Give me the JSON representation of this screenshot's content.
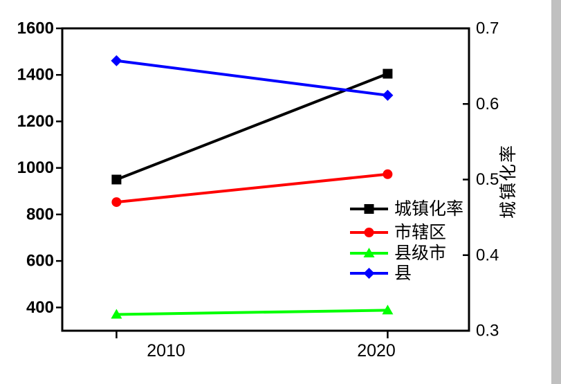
{
  "chart_data": {
    "type": "line",
    "title": "",
    "x": [
      2010,
      2020
    ],
    "x_tick_labels": [
      "2010",
      "2020"
    ],
    "series": [
      {
        "name": "城镇化率",
        "color": "#000000",
        "marker": "square",
        "axis": "right",
        "values": [
          0.5,
          0.64
        ]
      },
      {
        "name": "市辖区",
        "color": "#ff0000",
        "marker": "circle",
        "axis": "left",
        "values": [
          853,
          973
        ]
      },
      {
        "name": "县级市",
        "color": "#00ff00",
        "marker": "triangle",
        "axis": "left",
        "values": [
          370,
          388
        ]
      },
      {
        "name": "县",
        "color": "#0000ff",
        "marker": "diamond",
        "axis": "left",
        "values": [
          1461,
          1312
        ]
      }
    ],
    "left_axis": {
      "ticks": [
        1600,
        1400,
        1200,
        1000,
        800,
        600,
        400
      ],
      "range": [
        300,
        1600
      ],
      "title": ""
    },
    "right_axis": {
      "ticks": [
        "0.7",
        "0.6",
        "0.5",
        "0.4",
        "0.3"
      ],
      "range": [
        0.3,
        0.7
      ],
      "title": "城镇化率"
    },
    "x_axis_range": [
      2008,
      2023
    ],
    "grid": false,
    "legend": {
      "position": "inside-right-middle",
      "entries": [
        "城镇化率",
        "市辖区",
        "县级市",
        "县"
      ]
    }
  },
  "colors": {
    "background": "#ffffff",
    "frame": "#000000",
    "right_strip": "#c0c0c0"
  }
}
